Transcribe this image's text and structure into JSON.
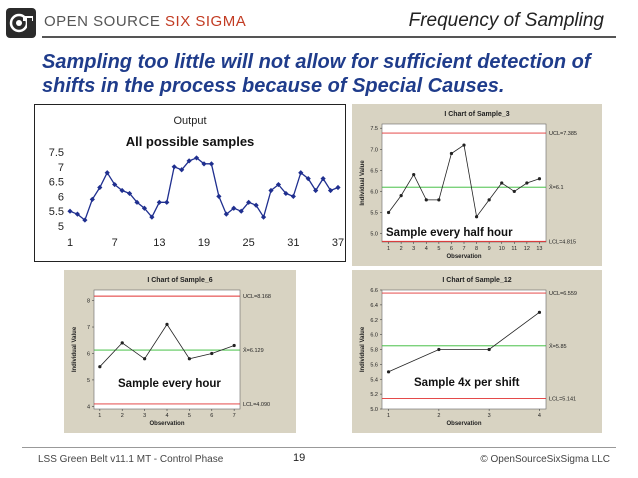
{
  "header": {
    "brand_main": "OPEN SOURCE",
    "brand_accent": "SIX SIGMA",
    "section_title": "Frequency of Sampling"
  },
  "headline": "Sampling too little will not allow for sufficient detection of shifts in the process because of Special Causes.",
  "footer": {
    "left": "LSS Green Belt v11.1 MT - Control Phase",
    "page": "19",
    "right": "© OpenSourceSixSigma LLC"
  },
  "colors": {
    "headline": "#1f3c8b",
    "excel_series": "#1f2f8f",
    "minitab_background": "#d8d3c2",
    "limit_line": "#e03030",
    "center_line": "#2eb82e",
    "accent": "#c23b22"
  },
  "chart_data": [
    {
      "type": "line",
      "subtitle": "Output",
      "title": "All possible samples",
      "xlabel": "",
      "ylabel": "",
      "x": [
        1,
        2,
        3,
        4,
        5,
        6,
        7,
        8,
        9,
        10,
        11,
        12,
        13,
        14,
        15,
        16,
        17,
        18,
        19,
        20,
        21,
        22,
        23,
        24,
        25,
        26,
        27,
        28,
        29,
        30,
        31,
        32,
        33,
        34,
        35,
        36,
        37
      ],
      "x_ticks": [
        "1",
        "7",
        "13",
        "19",
        "25",
        "31",
        "37"
      ],
      "y_ticks": [
        "5",
        "5.5",
        "6",
        "6.5",
        "7",
        "7.5"
      ],
      "ylim": [
        5,
        7.5
      ],
      "values": [
        5.5,
        5.4,
        5.2,
        5.9,
        6.3,
        6.8,
        6.4,
        6.2,
        6.1,
        5.8,
        5.6,
        5.3,
        5.8,
        5.8,
        7.0,
        6.9,
        7.2,
        7.3,
        7.1,
        7.1,
        6.0,
        5.4,
        5.6,
        5.5,
        5.8,
        5.7,
        5.3,
        6.2,
        6.4,
        6.1,
        6.0,
        6.8,
        6.6,
        6.2,
        6.6,
        6.2,
        6.3
      ],
      "grid": false,
      "legend": "none"
    },
    {
      "type": "line",
      "title": "I Chart of Sample_3",
      "xlabel": "Observation",
      "ylabel": "Individual Value",
      "annotation": "Sample every half hour",
      "x": [
        1,
        2,
        3,
        4,
        5,
        6,
        7,
        8,
        9,
        10,
        11,
        12,
        13
      ],
      "values": [
        5.5,
        5.9,
        6.4,
        5.8,
        5.8,
        6.9,
        7.1,
        5.4,
        5.8,
        6.2,
        6.0,
        6.2,
        6.3
      ],
      "ylim": [
        4.8,
        7.6
      ],
      "y_ticks": [
        "5.0",
        "5.5",
        "6.0",
        "6.5",
        "7.0",
        "7.5"
      ],
      "ucl": 7.385,
      "center": 6.1,
      "lcl": 4.815,
      "ucl_label": "UCL=7.385",
      "center_label": "X̄=6.1",
      "lcl_label": "LCL=4.815"
    },
    {
      "type": "line",
      "title": "I Chart of Sample_6",
      "xlabel": "Observation",
      "ylabel": "Individual Value",
      "annotation": "Sample every hour",
      "x": [
        1,
        2,
        3,
        4,
        5,
        6,
        7
      ],
      "values": [
        5.5,
        6.4,
        5.8,
        7.1,
        5.8,
        6.0,
        6.3
      ],
      "ylim": [
        3.9,
        8.4
      ],
      "y_ticks": [
        "4",
        "5",
        "6",
        "7",
        "8"
      ],
      "ucl": 8.168,
      "center": 6.129,
      "lcl": 4.09,
      "ucl_label": "UCL=8.168",
      "center_label": "X̄=6.129",
      "lcl_label": "LCL=4.090"
    },
    {
      "type": "line",
      "title": "I Chart of Sample_12",
      "xlabel": "Observation",
      "ylabel": "Individual Value",
      "annotation": "Sample 4x per shift",
      "x": [
        1,
        2,
        3,
        4
      ],
      "values": [
        5.5,
        5.8,
        5.8,
        6.3
      ],
      "ylim": [
        5.0,
        6.6
      ],
      "y_ticks": [
        "5.0",
        "5.2",
        "5.4",
        "5.6",
        "5.8",
        "6.0",
        "6.2",
        "6.4",
        "6.6"
      ],
      "ucl": 6.559,
      "center": 5.85,
      "lcl": 5.141,
      "ucl_label": "UCL=6.559",
      "center_label": "X̄=5.85",
      "lcl_label": "LCL=5.141"
    }
  ]
}
